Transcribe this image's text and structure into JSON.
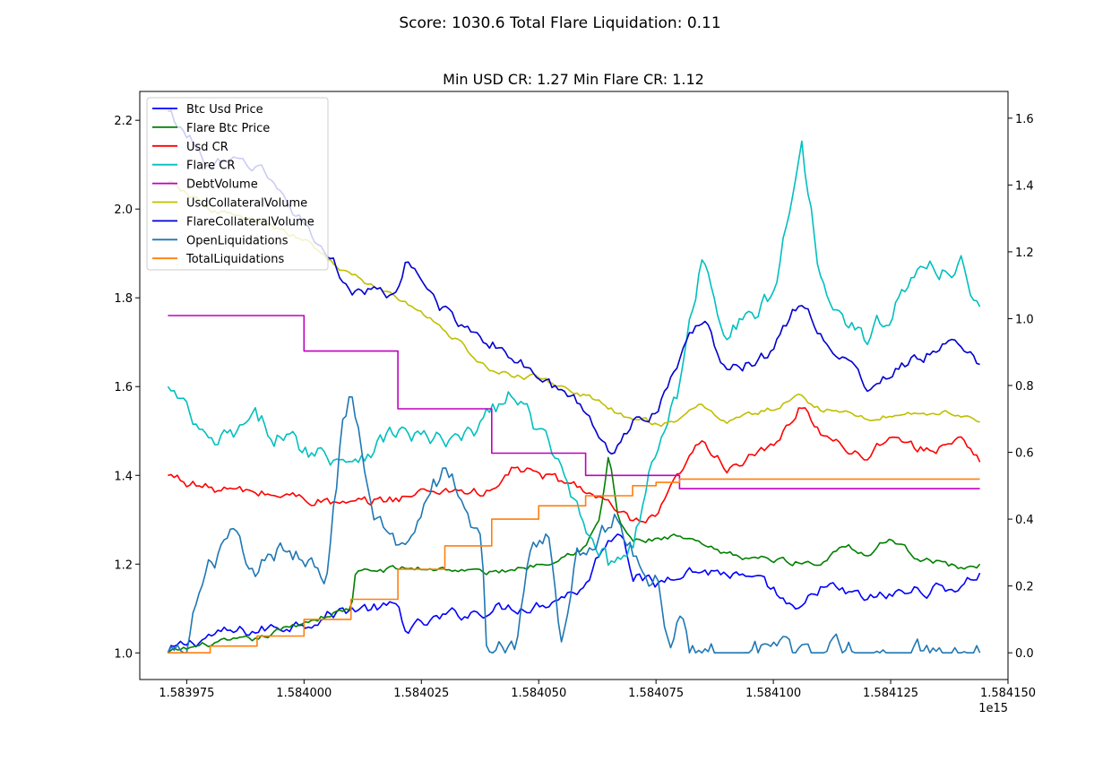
{
  "figure": {
    "suptitle": "Score: 1030.6 Total Flare Liquidation: 0.11",
    "title": "Min USD CR: 1.27 Min Flare CR: 1.12",
    "x_offset_label": "1e15"
  },
  "chart_data": {
    "type": "line",
    "x": {
      "range": [
        1.583965,
        1.58415
      ],
      "ticks": [
        1.583975,
        1.584,
        1.584025,
        1.58405,
        1.584075,
        1.5841,
        1.584125,
        1.58415
      ],
      "tick_labels": [
        "1.583975",
        "1.584000",
        "1.584025",
        "1.584050",
        "1.584075",
        "1.584100",
        "1.584125",
        "1.584150"
      ],
      "offset_text": "1e15"
    },
    "y_left": {
      "range": [
        0.94,
        2.265
      ],
      "ticks": [
        1.0,
        1.2,
        1.4,
        1.6,
        1.8,
        2.0,
        2.2
      ],
      "tick_labels": [
        "1.0",
        "1.2",
        "1.4",
        "1.6",
        "1.8",
        "2.0",
        "2.2"
      ]
    },
    "y_right": {
      "range": [
        -0.08,
        1.68
      ],
      "ticks": [
        0.0,
        0.2,
        0.4,
        0.6,
        0.8,
        1.0,
        1.2,
        1.4,
        1.6
      ],
      "tick_labels": [
        "0.0",
        "0.2",
        "0.4",
        "0.6",
        "0.8",
        "1.0",
        "1.2",
        "1.4",
        "1.6"
      ]
    },
    "grid": false,
    "legend_position": "upper-left",
    "series": [
      {
        "name": "Btc Usd Price",
        "color": "#0000ff",
        "axis": "left",
        "noise": 0.012,
        "points": [
          [
            1.583971,
            1.0
          ],
          [
            1.58398,
            1.04
          ],
          [
            1.58399,
            1.05
          ],
          [
            1.584,
            1.07
          ],
          [
            1.58401,
            1.1
          ],
          [
            1.58402,
            1.1
          ],
          [
            1.584022,
            1.05
          ],
          [
            1.58403,
            1.08
          ],
          [
            1.58404,
            1.1
          ],
          [
            1.58405,
            1.11
          ],
          [
            1.58406,
            1.15
          ],
          [
            1.584064,
            1.25
          ],
          [
            1.584068,
            1.28
          ],
          [
            1.58407,
            1.18
          ],
          [
            1.584075,
            1.15
          ],
          [
            1.58408,
            1.19
          ],
          [
            1.58409,
            1.18
          ],
          [
            1.5841,
            1.14
          ],
          [
            1.584105,
            1.08
          ],
          [
            1.58411,
            1.15
          ],
          [
            1.58412,
            1.12
          ],
          [
            1.58413,
            1.14
          ],
          [
            1.58414,
            1.15
          ],
          [
            1.584144,
            1.18
          ]
        ]
      },
      {
        "name": "Flare Btc Price",
        "color": "#008000",
        "axis": "left",
        "noise": 0.006,
        "points": [
          [
            1.583971,
            1.0
          ],
          [
            1.58398,
            1.02
          ],
          [
            1.58399,
            1.03
          ],
          [
            1.584,
            1.07
          ],
          [
            1.58401,
            1.1
          ],
          [
            1.584011,
            1.18
          ],
          [
            1.58402,
            1.19
          ],
          [
            1.58403,
            1.19
          ],
          [
            1.58404,
            1.18
          ],
          [
            1.58405,
            1.2
          ],
          [
            1.58406,
            1.24
          ],
          [
            1.584063,
            1.3
          ],
          [
            1.584065,
            1.45
          ],
          [
            1.584067,
            1.3
          ],
          [
            1.58407,
            1.25
          ],
          [
            1.58408,
            1.26
          ],
          [
            1.58409,
            1.22
          ],
          [
            1.5841,
            1.21
          ],
          [
            1.58411,
            1.2
          ],
          [
            1.584115,
            1.25
          ],
          [
            1.58412,
            1.22
          ],
          [
            1.584125,
            1.26
          ],
          [
            1.58413,
            1.22
          ],
          [
            1.58414,
            1.19
          ],
          [
            1.584144,
            1.2
          ]
        ]
      },
      {
        "name": "Usd CR",
        "color": "#ff0000",
        "axis": "left",
        "noise": 0.01,
        "points": [
          [
            1.583971,
            1.4
          ],
          [
            1.58398,
            1.37
          ],
          [
            1.58399,
            1.36
          ],
          [
            1.584,
            1.35
          ],
          [
            1.58401,
            1.33
          ],
          [
            1.58402,
            1.35
          ],
          [
            1.58403,
            1.37
          ],
          [
            1.58404,
            1.36
          ],
          [
            1.584045,
            1.42
          ],
          [
            1.58405,
            1.4
          ],
          [
            1.58406,
            1.37
          ],
          [
            1.584065,
            1.33
          ],
          [
            1.58407,
            1.29
          ],
          [
            1.584075,
            1.3
          ],
          [
            1.58408,
            1.4
          ],
          [
            1.584085,
            1.48
          ],
          [
            1.58409,
            1.42
          ],
          [
            1.5841,
            1.46
          ],
          [
            1.584106,
            1.56
          ],
          [
            1.58411,
            1.5
          ],
          [
            1.58412,
            1.44
          ],
          [
            1.584125,
            1.5
          ],
          [
            1.58413,
            1.46
          ],
          [
            1.58414,
            1.47
          ],
          [
            1.584144,
            1.43
          ]
        ]
      },
      {
        "name": "Flare CR",
        "color": "#00bfbf",
        "axis": "left",
        "noise": 0.02,
        "points": [
          [
            1.583971,
            1.6
          ],
          [
            1.58398,
            1.46
          ],
          [
            1.58399,
            1.52
          ],
          [
            1.584,
            1.46
          ],
          [
            1.58401,
            1.44
          ],
          [
            1.58402,
            1.5
          ],
          [
            1.58403,
            1.47
          ],
          [
            1.584035,
            1.48
          ],
          [
            1.58404,
            1.55
          ],
          [
            1.584045,
            1.58
          ],
          [
            1.58405,
            1.5
          ],
          [
            1.584055,
            1.4
          ],
          [
            1.58406,
            1.3
          ],
          [
            1.584065,
            1.2
          ],
          [
            1.58407,
            1.25
          ],
          [
            1.584075,
            1.45
          ],
          [
            1.58408,
            1.6
          ],
          [
            1.584085,
            1.9
          ],
          [
            1.58409,
            1.72
          ],
          [
            1.5841,
            1.8
          ],
          [
            1.584106,
            2.15
          ],
          [
            1.58411,
            1.85
          ],
          [
            1.58412,
            1.7
          ],
          [
            1.58413,
            1.85
          ],
          [
            1.58414,
            1.88
          ],
          [
            1.584144,
            1.78
          ]
        ]
      },
      {
        "name": "DebtVolume",
        "color": "#bf00bf",
        "axis": "left",
        "step": true,
        "points": [
          [
            1.583971,
            1.76
          ],
          [
            1.584,
            1.68
          ],
          [
            1.58402,
            1.55
          ],
          [
            1.58404,
            1.45
          ],
          [
            1.58406,
            1.4
          ],
          [
            1.58408,
            1.37
          ],
          [
            1.584144,
            1.37
          ]
        ]
      },
      {
        "name": "UsdCollateralVolume",
        "color": "#bfbf00",
        "axis": "left",
        "noise": 0.006,
        "points": [
          [
            1.583971,
            2.06
          ],
          [
            1.58398,
            2.0
          ],
          [
            1.58399,
            1.97
          ],
          [
            1.584,
            1.93
          ],
          [
            1.58401,
            1.85
          ],
          [
            1.58402,
            1.8
          ],
          [
            1.58403,
            1.73
          ],
          [
            1.58404,
            1.63
          ],
          [
            1.58405,
            1.62
          ],
          [
            1.58406,
            1.58
          ],
          [
            1.58407,
            1.52
          ],
          [
            1.58408,
            1.52
          ],
          [
            1.584085,
            1.56
          ],
          [
            1.58409,
            1.52
          ],
          [
            1.5841,
            1.55
          ],
          [
            1.584106,
            1.58
          ],
          [
            1.58411,
            1.55
          ],
          [
            1.58412,
            1.53
          ],
          [
            1.58413,
            1.54
          ],
          [
            1.58414,
            1.54
          ],
          [
            1.584144,
            1.52
          ]
        ]
      },
      {
        "name": "FlareCollateralVolume",
        "color": "#0000cd",
        "axis": "left",
        "noise": 0.012,
        "points": [
          [
            1.583971,
            2.22
          ],
          [
            1.58398,
            2.1
          ],
          [
            1.58399,
            2.1
          ],
          [
            1.584,
            1.97
          ],
          [
            1.58401,
            1.82
          ],
          [
            1.58402,
            1.8
          ],
          [
            1.584022,
            1.88
          ],
          [
            1.58403,
            1.77
          ],
          [
            1.58404,
            1.7
          ],
          [
            1.58405,
            1.62
          ],
          [
            1.58406,
            1.55
          ],
          [
            1.584065,
            1.45
          ],
          [
            1.58407,
            1.52
          ],
          [
            1.584075,
            1.55
          ],
          [
            1.58408,
            1.67
          ],
          [
            1.584085,
            1.75
          ],
          [
            1.58409,
            1.63
          ],
          [
            1.5841,
            1.68
          ],
          [
            1.584106,
            1.8
          ],
          [
            1.58411,
            1.72
          ],
          [
            1.58412,
            1.6
          ],
          [
            1.58413,
            1.66
          ],
          [
            1.58414,
            1.7
          ],
          [
            1.584144,
            1.65
          ]
        ]
      },
      {
        "name": "OpenLiquidations",
        "color": "#1f77b4",
        "axis": "right",
        "noise": 0.03,
        "points": [
          [
            1.583971,
            0.0
          ],
          [
            1.583975,
            0.0
          ],
          [
            1.583977,
            0.17
          ],
          [
            1.58398,
            0.25
          ],
          [
            1.583985,
            0.35
          ],
          [
            1.58399,
            0.25
          ],
          [
            1.583995,
            0.3
          ],
          [
            1.584,
            0.3
          ],
          [
            1.584005,
            0.25
          ],
          [
            1.584008,
            0.65
          ],
          [
            1.58401,
            0.75
          ],
          [
            1.584015,
            0.4
          ],
          [
            1.58402,
            0.3
          ],
          [
            1.584025,
            0.45
          ],
          [
            1.58403,
            0.55
          ],
          [
            1.584035,
            0.45
          ],
          [
            1.584038,
            0.3
          ],
          [
            1.584039,
            0.0
          ],
          [
            1.584045,
            0.0
          ],
          [
            1.584048,
            0.3
          ],
          [
            1.584052,
            0.35
          ],
          [
            1.584055,
            0.0
          ],
          [
            1.584058,
            0.3
          ],
          [
            1.584062,
            0.35
          ],
          [
            1.584066,
            0.4
          ],
          [
            1.58407,
            0.3
          ],
          [
            1.584075,
            0.22
          ],
          [
            1.584078,
            0.0
          ],
          [
            1.58408,
            0.15
          ],
          [
            1.584082,
            0.0
          ],
          [
            1.584144,
            0.0
          ]
        ]
      },
      {
        "name": "TotalLiquidations",
        "color": "#ff7f0e",
        "axis": "right",
        "step": true,
        "points": [
          [
            1.583971,
            0.0
          ],
          [
            1.58398,
            0.02
          ],
          [
            1.58399,
            0.05
          ],
          [
            1.584,
            0.1
          ],
          [
            1.58401,
            0.16
          ],
          [
            1.58402,
            0.25
          ],
          [
            1.58403,
            0.32
          ],
          [
            1.58404,
            0.4
          ],
          [
            1.58405,
            0.44
          ],
          [
            1.58406,
            0.47
          ],
          [
            1.58407,
            0.5
          ],
          [
            1.584075,
            0.51
          ],
          [
            1.58408,
            0.52
          ],
          [
            1.584144,
            0.52
          ]
        ]
      }
    ]
  }
}
